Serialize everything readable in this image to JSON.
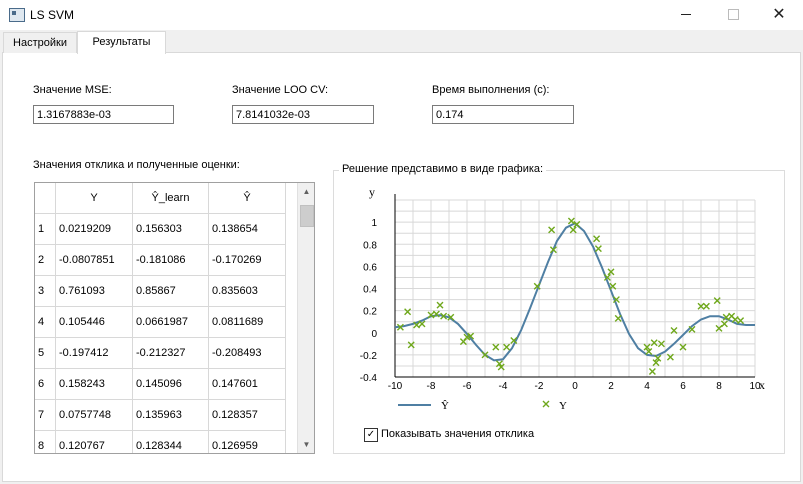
{
  "window": {
    "title": "LS SVM"
  },
  "tabs": [
    {
      "label": "Настройки",
      "selected": false
    },
    {
      "label": "Результаты",
      "selected": true
    }
  ],
  "metrics": {
    "mse_label": "Значение MSE:",
    "mse_value": "1.3167883e-03",
    "loo_label": "Значение LOO CV:",
    "loo_value": "7.8141032e-03",
    "time_label": "Время выполнения (с):",
    "time_value": "0.174"
  },
  "table": {
    "caption": "Значения отклика и полученные оценки:",
    "columns": [
      "Y",
      "Ŷ_learn",
      "Ŷ"
    ],
    "rows": [
      [
        "1",
        "0.0219209",
        "0.156303",
        "0.138654"
      ],
      [
        "2",
        "-0.0807851",
        "-0.181086",
        "-0.170269"
      ],
      [
        "3",
        "0.761093",
        "0.85867",
        "0.835603"
      ],
      [
        "4",
        "0.105446",
        "0.0661987",
        "0.0811689"
      ],
      [
        "5",
        "-0.197412",
        "-0.212327",
        "-0.208493"
      ],
      [
        "6",
        "0.158243",
        "0.145096",
        "0.147601"
      ],
      [
        "7",
        "0.0757748",
        "0.135963",
        "0.128357"
      ],
      [
        "8",
        "0.120767",
        "0.128344",
        "0.126959"
      ]
    ]
  },
  "chart_section": {
    "title": "Решение представимо в виде  графика:",
    "show_response_label": "Показывать значения отклика",
    "show_response_checked": true
  },
  "chart_data": {
    "type": "line",
    "xlabel": "x",
    "ylabel": "y",
    "xlim": [
      -10,
      10
    ],
    "ylim": [
      -0.4,
      1.2
    ],
    "x_ticks": [
      "-10",
      "-8",
      "-6",
      "-4",
      "-2",
      "0",
      "2",
      "4",
      "6",
      "8",
      "10"
    ],
    "y_ticks": [
      "-0.4",
      "-0.2",
      "0",
      "0.2",
      "0.4",
      "0.6",
      "0.8",
      "1"
    ],
    "grid": true,
    "legend_position": "bottom",
    "colors": {
      "line": "#4f7fa3",
      "points": "#6fa81c"
    },
    "series": [
      {
        "name": "Ŷ",
        "kind": "line",
        "x": [
          -10.0,
          -9.5,
          -9.0,
          -8.5,
          -8.0,
          -7.5,
          -7.0,
          -6.5,
          -6.0,
          -5.5,
          -5.0,
          -4.5,
          -4.0,
          -3.5,
          -3.0,
          -2.5,
          -2.0,
          -1.5,
          -1.0,
          -0.5,
          0.0,
          0.5,
          1.0,
          1.5,
          2.0,
          2.5,
          3.0,
          3.5,
          4.0,
          4.5,
          5.0,
          5.5,
          6.0,
          6.5,
          7.0,
          7.5,
          8.0,
          8.5,
          9.0,
          9.5,
          10.0
        ],
        "y": [
          0.05,
          0.06,
          0.08,
          0.11,
          0.15,
          0.16,
          0.14,
          0.08,
          -0.01,
          -0.11,
          -0.2,
          -0.25,
          -0.24,
          -0.14,
          0.02,
          0.22,
          0.43,
          0.64,
          0.83,
          0.95,
          0.99,
          0.92,
          0.78,
          0.59,
          0.38,
          0.17,
          -0.01,
          -0.14,
          -0.2,
          -0.21,
          -0.17,
          -0.1,
          -0.02,
          0.06,
          0.12,
          0.15,
          0.15,
          0.12,
          0.08,
          0.07,
          0.07
        ]
      },
      {
        "name": "Y",
        "kind": "scatter",
        "x": [
          -9.7,
          -9.3,
          -9.1,
          -8.8,
          -8.5,
          -8.0,
          -7.7,
          -7.5,
          -7.3,
          -6.9,
          -6.2,
          -6.0,
          -5.8,
          -5.0,
          -4.4,
          -4.2,
          -4.1,
          -3.8,
          -3.4,
          -2.1,
          -1.3,
          -1.2,
          -0.2,
          -0.1,
          0.1,
          1.2,
          1.3,
          1.8,
          2.0,
          2.1,
          2.3,
          2.4,
          4.0,
          4.1,
          4.3,
          4.4,
          4.5,
          4.6,
          4.8,
          5.3,
          5.5,
          6.0,
          6.5,
          7.0,
          7.3,
          7.9,
          8.0,
          8.3,
          8.4,
          8.7,
          8.9,
          9.2
        ],
        "y": [
          0.05,
          0.19,
          -0.11,
          0.07,
          0.08,
          0.16,
          0.17,
          0.25,
          0.15,
          0.14,
          -0.08,
          -0.04,
          -0.03,
          -0.2,
          -0.13,
          -0.28,
          -0.31,
          -0.13,
          -0.07,
          0.42,
          0.93,
          0.75,
          1.01,
          0.93,
          0.98,
          0.85,
          0.76,
          0.5,
          0.55,
          0.42,
          0.3,
          0.13,
          -0.13,
          -0.17,
          -0.35,
          -0.09,
          -0.27,
          -0.23,
          -0.1,
          -0.22,
          0.02,
          -0.13,
          0.03,
          0.24,
          0.24,
          0.29,
          0.04,
          0.08,
          0.14,
          0.15,
          0.12,
          0.11
        ]
      }
    ]
  }
}
